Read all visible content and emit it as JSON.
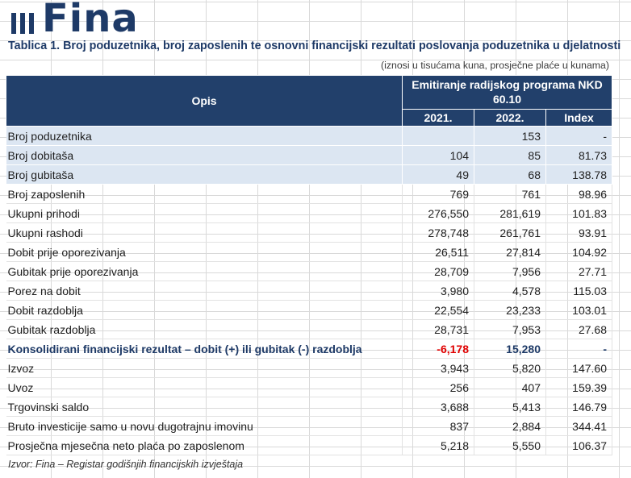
{
  "logo": {
    "text": "Fina"
  },
  "title": "Tablica 1.  Broj poduzetnika, broj zaposlenih te osnovni financijski rezultati poslovanja poduzetnika u djelatnosti",
  "units_note": "(iznosi u tisućama kuna, prosječne plaće u kunama)",
  "table": {
    "header_opis": "Opis",
    "header_group": "Emitiranje radijskog programa NKD 60.10",
    "header_years": [
      "2021.",
      "2022.",
      "Index"
    ],
    "rows": [
      {
        "label": "Broj poduzetnika",
        "v2021": "",
        "v2022": "153",
        "index": "-"
      },
      {
        "label": "Broj dobitaša",
        "v2021": "104",
        "v2022": "85",
        "index": "81.73"
      },
      {
        "label": "Broj gubitaša",
        "v2021": "49",
        "v2022": "68",
        "index": "138.78"
      },
      {
        "label": "Broj zaposlenih",
        "v2021": "769",
        "v2022": "761",
        "index": "98.96"
      },
      {
        "label": "Ukupni prihodi",
        "v2021": "276,550",
        "v2022": "281,619",
        "index": "101.83"
      },
      {
        "label": "Ukupni rashodi",
        "v2021": "278,748",
        "v2022": "261,761",
        "index": "93.91"
      },
      {
        "label": "Dobit prije oporezivanja",
        "v2021": "26,511",
        "v2022": "27,814",
        "index": "104.92"
      },
      {
        "label": "Gubitak prije oporezivanja",
        "v2021": "28,709",
        "v2022": "7,956",
        "index": "27.71"
      },
      {
        "label": "Porez na dobit",
        "v2021": "3,980",
        "v2022": "4,578",
        "index": "115.03"
      },
      {
        "label": "Dobit razdoblja",
        "v2021": "22,554",
        "v2022": "23,233",
        "index": "103.01"
      },
      {
        "label": "Gubitak razdoblja",
        "v2021": "28,731",
        "v2022": "7,953",
        "index": "27.68"
      },
      {
        "label": "Konsolidirani financijski rezultat – dobit (+) ili gubitak (-) razdoblja",
        "v2021": "-6,178",
        "v2022": "15,280",
        "index": "-"
      },
      {
        "label": "Izvoz",
        "v2021": "3,943",
        "v2022": "5,820",
        "index": "147.60"
      },
      {
        "label": "Uvoz",
        "v2021": "256",
        "v2022": "407",
        "index": "159.39"
      },
      {
        "label": "Trgovinski saldo",
        "v2021": "3,688",
        "v2022": "5,413",
        "index": "146.79"
      },
      {
        "label": "Bruto investicije samo u novu dugotrajnu imovinu",
        "v2021": "837",
        "v2022": "2,884",
        "index": "344.41"
      },
      {
        "label": "Prosječna mjesečna neto plaća po zaposlenom",
        "v2021": "5,218",
        "v2022": "5,550",
        "index": "106.37"
      }
    ]
  },
  "source": "Izvor: Fina – Registar godišnjih financijskih izvještaja"
}
